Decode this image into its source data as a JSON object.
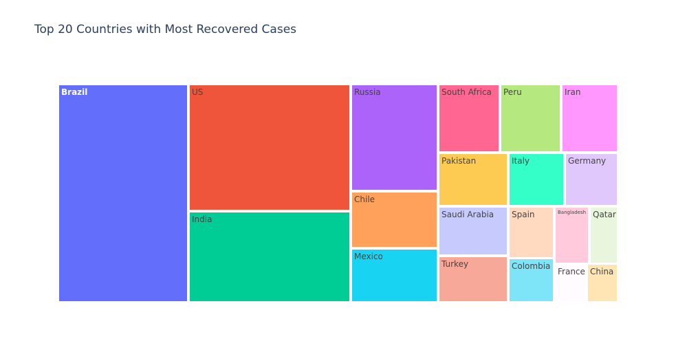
{
  "chart_data": {
    "type": "treemap",
    "title": "Top 20 Countries with Most Recovered Cases",
    "items": [
      {
        "name": "Brazil",
        "color": "#636efa",
        "label_color": "#ffffff"
      },
      {
        "name": "US",
        "color": "#ef553b",
        "label_color": "#444444"
      },
      {
        "name": "India",
        "color": "#00cc96",
        "label_color": "#444444"
      },
      {
        "name": "Russia",
        "color": "#ab63fa",
        "label_color": "#444444"
      },
      {
        "name": "Chile",
        "color": "#ffa15a",
        "label_color": "#444444"
      },
      {
        "name": "Mexico",
        "color": "#19d3f3",
        "label_color": "#444444"
      },
      {
        "name": "South Africa",
        "color": "#ff6692",
        "label_color": "#444444"
      },
      {
        "name": "Peru",
        "color": "#b6e880",
        "label_color": "#444444"
      },
      {
        "name": "Iran",
        "color": "#ff97ff",
        "label_color": "#444444"
      },
      {
        "name": "Pakistan",
        "color": "#fecb52",
        "label_color": "#444444"
      },
      {
        "name": "Italy",
        "color": "#35ffc8",
        "label_color": "#444444"
      },
      {
        "name": "Germany",
        "color": "#e0c8fc",
        "label_color": "#444444"
      },
      {
        "name": "Saudi Arabia",
        "color": "#c6cafd",
        "label_color": "#444444"
      },
      {
        "name": "Spain",
        "color": "#ffd9c0",
        "label_color": "#444444"
      },
      {
        "name": "Bangladesh",
        "color": "#ffcbdc",
        "label_color": "#444444"
      },
      {
        "name": "Qatar",
        "color": "#e9f6dd",
        "label_color": "#444444"
      },
      {
        "name": "Turkey",
        "color": "#f7a898",
        "label_color": "#444444"
      },
      {
        "name": "Colombia",
        "color": "#7ee5f8",
        "label_color": "#444444"
      },
      {
        "name": "France",
        "color": "#fffbfe",
        "label_color": "#444444"
      },
      {
        "name": "China",
        "color": "#fee5b3",
        "label_color": "#444444"
      }
    ]
  }
}
